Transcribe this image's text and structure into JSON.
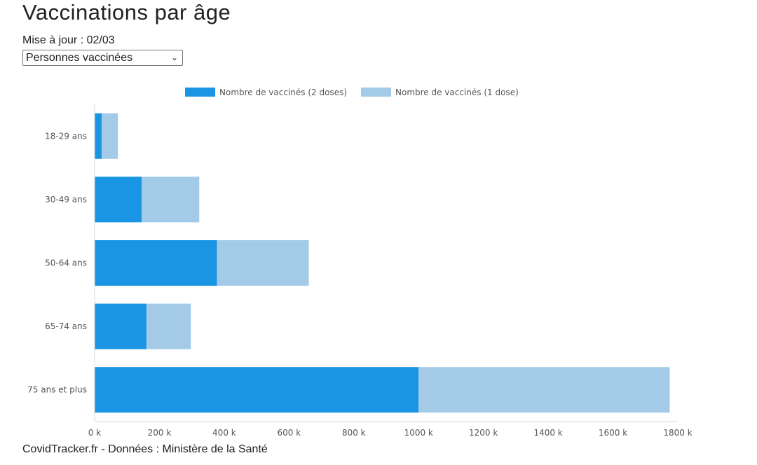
{
  "header": {
    "title": "Vaccinations par âge",
    "update_label": "Mise à jour : 02/03"
  },
  "selector": {
    "selected": "Personnes vaccinées"
  },
  "footer": {
    "source": "CovidTracker.fr - Données : Ministère de la Santé"
  },
  "colors": {
    "dose2": "#1a95e3",
    "dose1": "#a3cbe8"
  },
  "chart_data": {
    "type": "bar",
    "orientation": "horizontal",
    "stacked": true,
    "categories": [
      "18-29 ans",
      "30-49 ans",
      "50-64 ans",
      "65-74 ans",
      "75 ans et plus"
    ],
    "series": [
      {
        "name": "Nombre de vaccinés (2 doses)",
        "values": [
          22000,
          145000,
          378000,
          160000,
          1000000
        ]
      },
      {
        "name": "Nombre de vaccinés (1 dose)",
        "values": [
          50000,
          178000,
          283000,
          137000,
          775000
        ]
      }
    ],
    "xlim": [
      0,
      1800000
    ],
    "xticks": [
      "0 k",
      "200 k",
      "400 k",
      "600 k",
      "800 k",
      "1000 k",
      "1200 k",
      "1400 k",
      "1600 k",
      "1800 k"
    ],
    "legend_position": "top-center",
    "grid": false
  }
}
